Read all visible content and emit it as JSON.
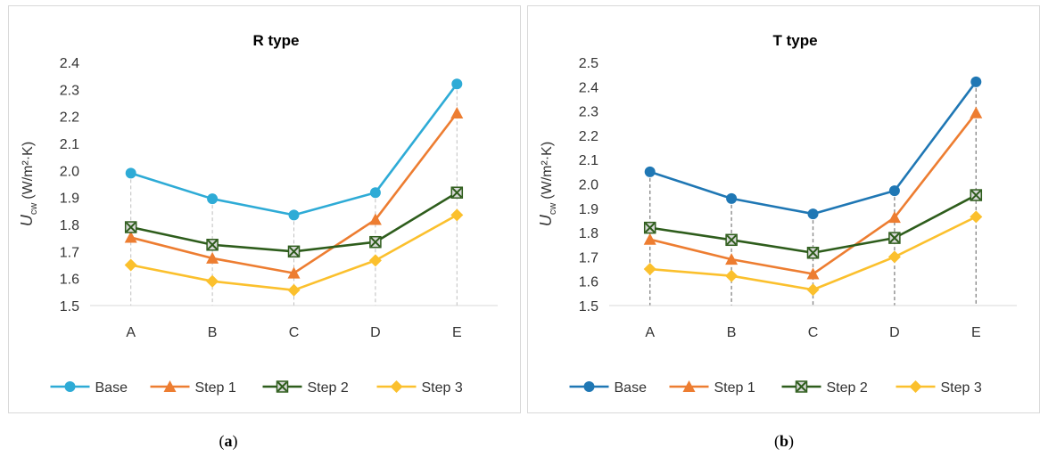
{
  "captions": {
    "a": {
      "open": "(",
      "letter": "a",
      "close": ")"
    },
    "b": {
      "open": "(",
      "letter": "b",
      "close": ")"
    }
  },
  "chart_data": [
    {
      "type": "line",
      "title": "R type",
      "ylabel": {
        "main": "U",
        "sub": "cw",
        "unit": "(W/m²·K)"
      },
      "categories": [
        "A",
        "B",
        "C",
        "D",
        "E"
      ],
      "ylim": [
        1.5,
        2.4
      ],
      "yticks": [
        "1.5",
        "1.6",
        "1.7",
        "1.8",
        "1.9",
        "2.0",
        "2.1",
        "2.2",
        "2.3",
        "2.4"
      ],
      "grid": "vertical dashed drop lines",
      "legend": "bottom",
      "series": [
        {
          "name": "Base",
          "marker": "circle",
          "color": "#2eabd6",
          "values": [
            1.99,
            1.895,
            1.835,
            1.918,
            2.32
          ]
        },
        {
          "name": "Step 1",
          "marker": "triangle",
          "color": "#ed7d31",
          "values": [
            1.752,
            1.675,
            1.62,
            1.818,
            2.212
          ]
        },
        {
          "name": "Step 2",
          "marker": "x-square",
          "color": "#2e5d1c",
          "values": [
            1.79,
            1.725,
            1.7,
            1.735,
            1.918
          ]
        },
        {
          "name": "Step 3",
          "marker": "diamond",
          "color": "#fbc02d",
          "values": [
            1.65,
            1.59,
            1.557,
            1.667,
            1.835
          ]
        }
      ]
    },
    {
      "type": "line",
      "title": "T type",
      "ylabel": {
        "main": "U",
        "sub": "cw",
        "unit": "(W/m²·K)"
      },
      "categories": [
        "A",
        "B",
        "C",
        "D",
        "E"
      ],
      "ylim": [
        1.5,
        2.5
      ],
      "yticks": [
        "1.5",
        "1.6",
        "1.7",
        "1.8",
        "1.9",
        "2.0",
        "2.1",
        "2.2",
        "2.3",
        "2.4",
        "2.5"
      ],
      "grid": "vertical dashed drop lines",
      "legend": "bottom",
      "series": [
        {
          "name": "Base",
          "marker": "circle",
          "color": "#1f77b4",
          "values": [
            2.05,
            1.94,
            1.877,
            1.972,
            2.42
          ]
        },
        {
          "name": "Step 1",
          "marker": "triangle",
          "color": "#ed7d31",
          "values": [
            1.772,
            1.69,
            1.63,
            1.862,
            2.292
          ]
        },
        {
          "name": "Step 2",
          "marker": "x-square",
          "color": "#2e5d1c",
          "values": [
            1.82,
            1.77,
            1.717,
            1.778,
            1.954
          ]
        },
        {
          "name": "Step 3",
          "marker": "diamond",
          "color": "#fbc02d",
          "values": [
            1.65,
            1.622,
            1.565,
            1.7,
            1.865
          ]
        }
      ]
    }
  ]
}
